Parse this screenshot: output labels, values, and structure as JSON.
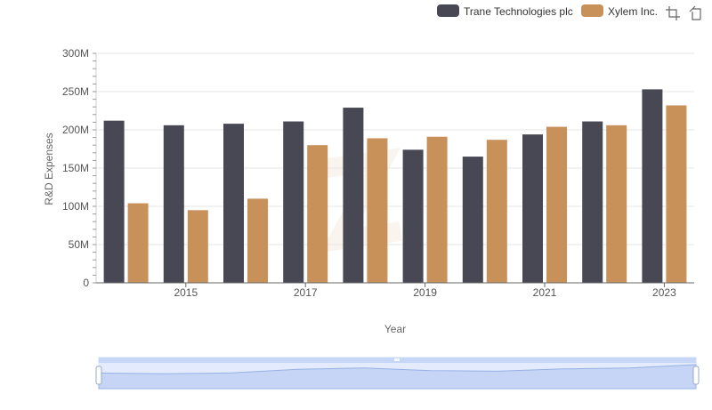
{
  "chart_data": {
    "type": "bar",
    "title": "",
    "xlabel": "Year",
    "ylabel": "R&D Expenses",
    "categories": [
      "2014",
      "2015",
      "2016",
      "2017",
      "2018",
      "2019",
      "2020",
      "2021",
      "2022",
      "2023"
    ],
    "x_tick_labels": [
      "2015",
      "2017",
      "2019",
      "2021",
      "2023"
    ],
    "y_tick_labels": [
      "0",
      "50M",
      "100M",
      "150M",
      "200M",
      "250M",
      "300M"
    ],
    "y_ticks": [
      0,
      50000000,
      100000000,
      150000000,
      200000000,
      250000000,
      300000000
    ],
    "ylim": [
      0,
      300000000
    ],
    "series": [
      {
        "name": "Trane Technologies plc",
        "color": "#484855",
        "values": [
          212000000,
          206000000,
          208000000,
          211000000,
          229000000,
          174000000,
          165000000,
          194000000,
          211000000,
          253000000
        ]
      },
      {
        "name": "Xylem Inc.",
        "color": "#c8915a",
        "values": [
          104000000,
          95000000,
          110000000,
          180000000,
          189000000,
          191000000,
          187000000,
          204000000,
          206000000,
          232000000
        ]
      }
    ],
    "legend_position": "top-right",
    "grid": true
  },
  "toolbar": {
    "icons": [
      "crop-icon",
      "reset-icon"
    ]
  },
  "data_zoom": {
    "range_start": 0,
    "range_end": 100,
    "accent": "#c5d6f7"
  }
}
